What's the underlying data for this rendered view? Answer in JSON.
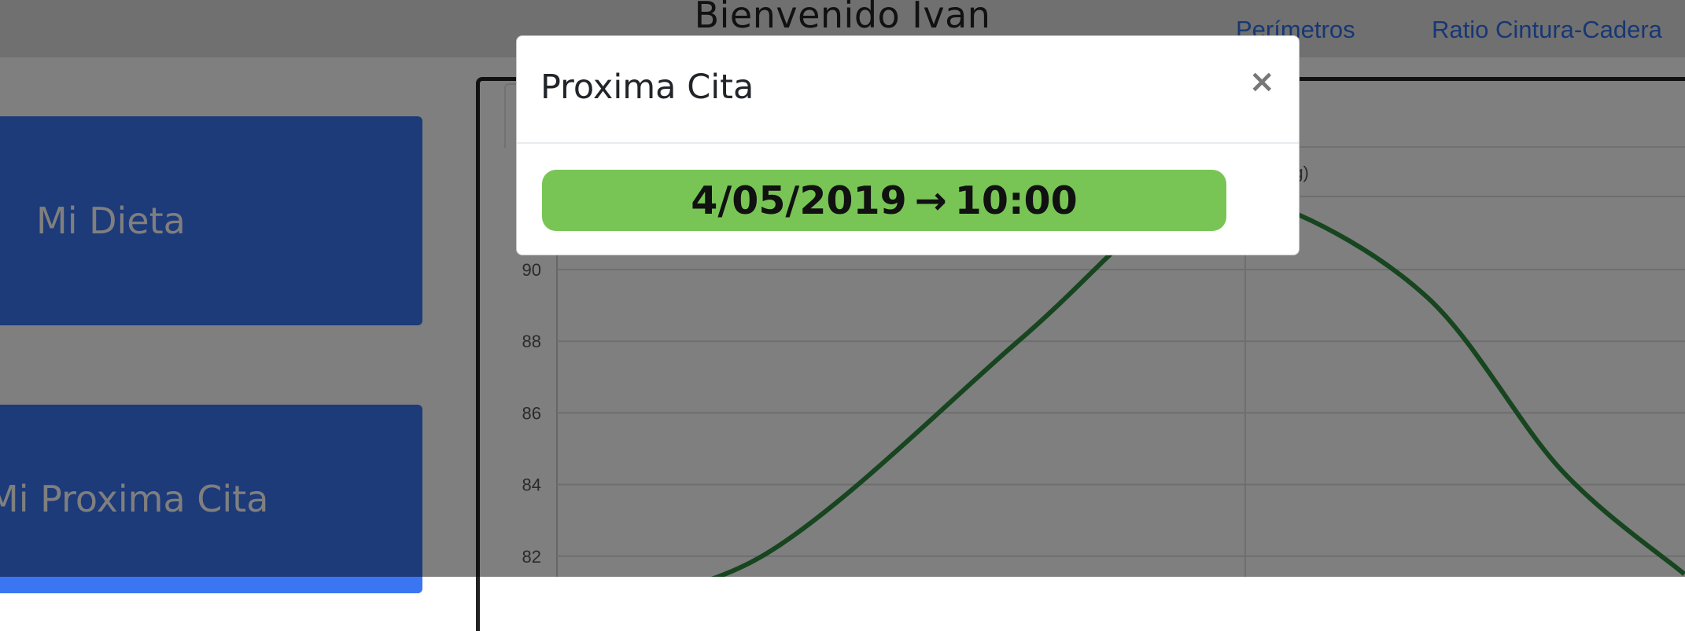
{
  "header": {
    "title": "Bienvenido Ivan"
  },
  "menu": {
    "diet_label": "Mi Dieta",
    "appointment_label": "Mi Proxima Cita"
  },
  "tabs": {
    "perimetros_label": "Perímetros",
    "ratio_label": "Ratio Cintura-Cadera"
  },
  "chart_data": {
    "type": "line",
    "ylabel": "(kg)",
    "y_ticks": [
      82,
      84,
      86,
      88,
      90
    ],
    "ylim": [
      81,
      92
    ],
    "grid": true,
    "color": "#2e8b3e",
    "series": [
      {
        "points": [
          [
            0,
            80.5
          ],
          [
            0.2,
            82.0
          ],
          [
            0.45,
            88.0
          ],
          [
            0.6,
            91.8
          ],
          [
            0.7,
            91.8
          ],
          [
            0.85,
            89.2
          ],
          [
            0.98,
            84.4
          ],
          [
            1.1,
            81.5
          ]
        ]
      }
    ]
  },
  "modal": {
    "title": "Proxima Cita",
    "close_symbol": "×",
    "date": "4/05/2019",
    "arrow": "→",
    "time": "10:00"
  },
  "colors": {
    "primary": "#3a75f2",
    "success": "#78c556",
    "line": "#2e8b3e"
  }
}
